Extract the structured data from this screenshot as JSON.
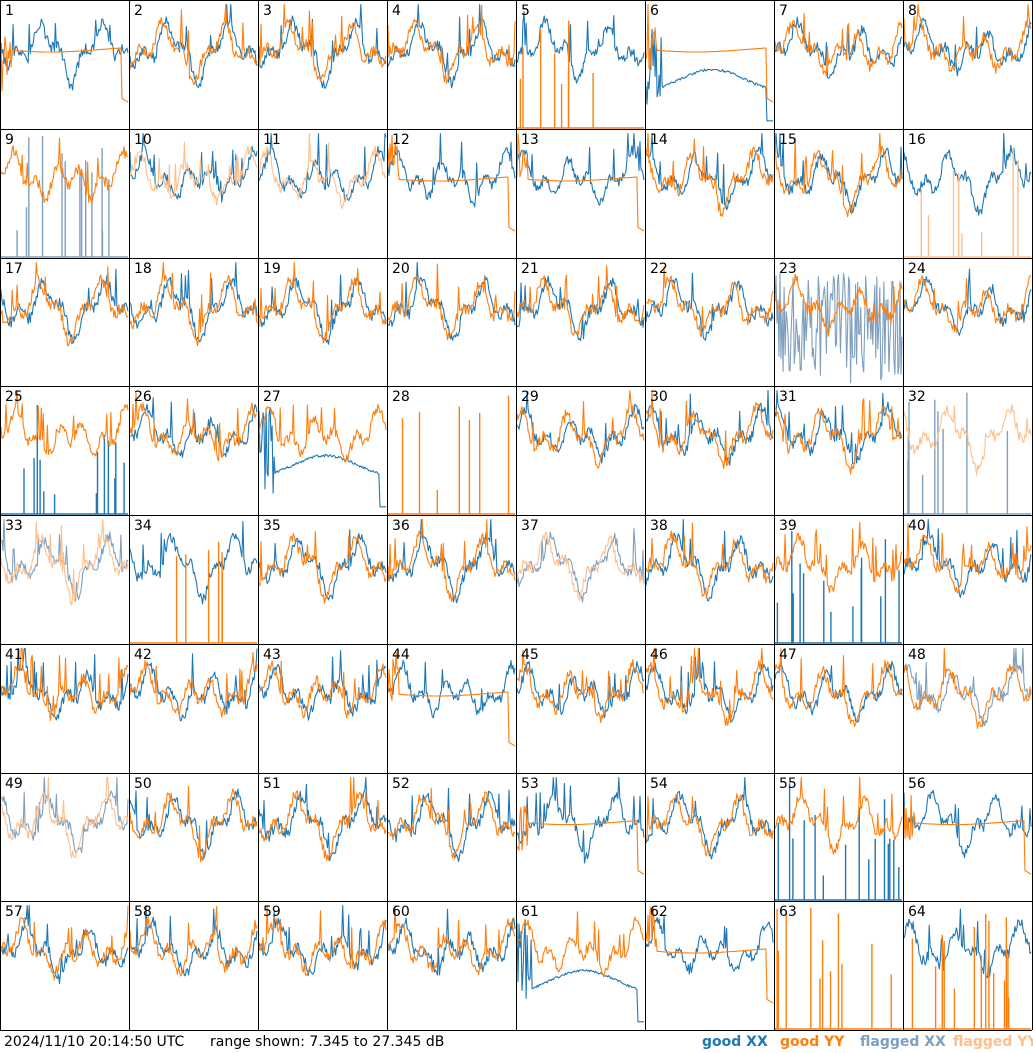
{
  "footer": {
    "timestamp": "2024/11/10 20:14:50 UTC",
    "range": "range shown: 7.345 to 27.345 dB"
  },
  "legend": {
    "good_xx": "good XX",
    "good_yy": "good YY",
    "flagged_xx": "flagged XX",
    "flagged_yy": "flagged YY"
  },
  "colors": {
    "good_xx": "#1f77b4",
    "good_yy": "#ff7f0e",
    "flagged_xx": "#7f9fbf",
    "flagged_yy": "#ffbf8a"
  },
  "chart_data": {
    "type": "line",
    "layout": "small-multiples 8x8",
    "ylim_db": [
      7.345,
      27.345
    ],
    "series_keys": [
      "XX",
      "YY"
    ],
    "tiles": [
      {
        "label": "1",
        "xx": "good",
        "yy": "good",
        "xx_shape": "normal",
        "yy_shape": "plateau"
      },
      {
        "label": "2",
        "xx": "good",
        "yy": "good",
        "xx_shape": "normal",
        "yy_shape": "normal"
      },
      {
        "label": "3",
        "xx": "good",
        "yy": "good",
        "xx_shape": "normal",
        "yy_shape": "normal"
      },
      {
        "label": "4",
        "xx": "good",
        "yy": "good",
        "xx_shape": "normal",
        "yy_shape": "normal"
      },
      {
        "label": "5",
        "xx": "good",
        "yy": "good",
        "xx_shape": "normal",
        "yy_shape": "spikes"
      },
      {
        "label": "6",
        "xx": "good",
        "yy": "good",
        "xx_shape": "dip",
        "yy_shape": "plateau"
      },
      {
        "label": "7",
        "xx": "good",
        "yy": "good",
        "xx_shape": "normal",
        "yy_shape": "normal"
      },
      {
        "label": "8",
        "xx": "good",
        "yy": "good",
        "xx_shape": "normal",
        "yy_shape": "normal"
      },
      {
        "label": "9",
        "xx": "flagged",
        "yy": "good",
        "xx_shape": "spikes",
        "yy_shape": "normal"
      },
      {
        "label": "10",
        "xx": "good",
        "yy": "flagged",
        "xx_shape": "normal",
        "yy_shape": "normal"
      },
      {
        "label": "11",
        "xx": "good",
        "yy": "flagged",
        "xx_shape": "normal",
        "yy_shape": "normal"
      },
      {
        "label": "12",
        "xx": "good",
        "yy": "good",
        "xx_shape": "normal",
        "yy_shape": "plateau"
      },
      {
        "label": "13",
        "xx": "good",
        "yy": "good",
        "xx_shape": "normal",
        "yy_shape": "plateau"
      },
      {
        "label": "14",
        "xx": "good",
        "yy": "good",
        "xx_shape": "normal",
        "yy_shape": "normal"
      },
      {
        "label": "15",
        "xx": "good",
        "yy": "good",
        "xx_shape": "normal",
        "yy_shape": "normal"
      },
      {
        "label": "16",
        "xx": "good",
        "yy": "flagged",
        "xx_shape": "normal",
        "yy_shape": "spikes"
      },
      {
        "label": "17",
        "xx": "good",
        "yy": "good",
        "xx_shape": "normal",
        "yy_shape": "normal"
      },
      {
        "label": "18",
        "xx": "good",
        "yy": "good",
        "xx_shape": "normal",
        "yy_shape": "normal"
      },
      {
        "label": "19",
        "xx": "good",
        "yy": "good",
        "xx_shape": "normal",
        "yy_shape": "normal"
      },
      {
        "label": "20",
        "xx": "good",
        "yy": "good",
        "xx_shape": "normal",
        "yy_shape": "normal"
      },
      {
        "label": "21",
        "xx": "good",
        "yy": "good",
        "xx_shape": "normal",
        "yy_shape": "normal"
      },
      {
        "label": "22",
        "xx": "good",
        "yy": "good",
        "xx_shape": "normal",
        "yy_shape": "normal"
      },
      {
        "label": "23",
        "xx": "flagged",
        "yy": "good",
        "xx_shape": "noisy",
        "yy_shape": "normal"
      },
      {
        "label": "24",
        "xx": "good",
        "yy": "good",
        "xx_shape": "normal",
        "yy_shape": "normal"
      },
      {
        "label": "25",
        "xx": "good",
        "yy": "good",
        "xx_shape": "spikes",
        "yy_shape": "normal"
      },
      {
        "label": "26",
        "xx": "good",
        "yy": "good",
        "xx_shape": "normal",
        "yy_shape": "normal"
      },
      {
        "label": "27",
        "xx": "good",
        "yy": "good",
        "xx_shape": "dip",
        "yy_shape": "normal"
      },
      {
        "label": "28",
        "xx": "good",
        "yy": "good",
        "xx_shape": "none",
        "yy_shape": "spikes"
      },
      {
        "label": "29",
        "xx": "good",
        "yy": "good",
        "xx_shape": "normal",
        "yy_shape": "normal"
      },
      {
        "label": "30",
        "xx": "good",
        "yy": "good",
        "xx_shape": "normal",
        "yy_shape": "normal"
      },
      {
        "label": "31",
        "xx": "good",
        "yy": "good",
        "xx_shape": "normal",
        "yy_shape": "normal"
      },
      {
        "label": "32",
        "xx": "flagged",
        "yy": "flagged",
        "xx_shape": "spikes",
        "yy_shape": "normal"
      },
      {
        "label": "33",
        "xx": "flagged",
        "yy": "flagged",
        "xx_shape": "normal",
        "yy_shape": "normal"
      },
      {
        "label": "34",
        "xx": "good",
        "yy": "good",
        "xx_shape": "normal",
        "yy_shape": "spikes"
      },
      {
        "label": "35",
        "xx": "good",
        "yy": "good",
        "xx_shape": "normal",
        "yy_shape": "normal"
      },
      {
        "label": "36",
        "xx": "good",
        "yy": "good",
        "xx_shape": "normal",
        "yy_shape": "normal"
      },
      {
        "label": "37",
        "xx": "flagged",
        "yy": "flagged",
        "xx_shape": "normal",
        "yy_shape": "normal"
      },
      {
        "label": "38",
        "xx": "good",
        "yy": "good",
        "xx_shape": "normal",
        "yy_shape": "normal"
      },
      {
        "label": "39",
        "xx": "good",
        "yy": "good",
        "xx_shape": "spikes",
        "yy_shape": "normal"
      },
      {
        "label": "40",
        "xx": "good",
        "yy": "good",
        "xx_shape": "normal",
        "yy_shape": "normal"
      },
      {
        "label": "41",
        "xx": "good",
        "yy": "good",
        "xx_shape": "normal",
        "yy_shape": "normal"
      },
      {
        "label": "42",
        "xx": "good",
        "yy": "good",
        "xx_shape": "normal",
        "yy_shape": "normal"
      },
      {
        "label": "43",
        "xx": "good",
        "yy": "good",
        "xx_shape": "normal",
        "yy_shape": "normal"
      },
      {
        "label": "44",
        "xx": "good",
        "yy": "good",
        "xx_shape": "normal",
        "yy_shape": "plateau"
      },
      {
        "label": "45",
        "xx": "good",
        "yy": "good",
        "xx_shape": "normal",
        "yy_shape": "normal"
      },
      {
        "label": "46",
        "xx": "good",
        "yy": "good",
        "xx_shape": "normal",
        "yy_shape": "normal"
      },
      {
        "label": "47",
        "xx": "good",
        "yy": "good",
        "xx_shape": "normal",
        "yy_shape": "normal"
      },
      {
        "label": "48",
        "xx": "flagged",
        "yy": "good",
        "xx_shape": "normal",
        "yy_shape": "normal"
      },
      {
        "label": "49",
        "xx": "flagged",
        "yy": "flagged",
        "xx_shape": "normal",
        "yy_shape": "normal"
      },
      {
        "label": "50",
        "xx": "good",
        "yy": "good",
        "xx_shape": "normal",
        "yy_shape": "normal"
      },
      {
        "label": "51",
        "xx": "good",
        "yy": "good",
        "xx_shape": "normal",
        "yy_shape": "normal"
      },
      {
        "label": "52",
        "xx": "good",
        "yy": "good",
        "xx_shape": "normal",
        "yy_shape": "normal"
      },
      {
        "label": "53",
        "xx": "good",
        "yy": "good",
        "xx_shape": "normal",
        "yy_shape": "plateau"
      },
      {
        "label": "54",
        "xx": "good",
        "yy": "good",
        "xx_shape": "normal",
        "yy_shape": "normal"
      },
      {
        "label": "55",
        "xx": "good",
        "yy": "good",
        "xx_shape": "spikes",
        "yy_shape": "normal"
      },
      {
        "label": "56",
        "xx": "good",
        "yy": "good",
        "xx_shape": "normal",
        "yy_shape": "plateau"
      },
      {
        "label": "57",
        "xx": "good",
        "yy": "good",
        "xx_shape": "normal",
        "yy_shape": "normal"
      },
      {
        "label": "58",
        "xx": "good",
        "yy": "good",
        "xx_shape": "normal",
        "yy_shape": "normal"
      },
      {
        "label": "59",
        "xx": "good",
        "yy": "good",
        "xx_shape": "normal",
        "yy_shape": "normal"
      },
      {
        "label": "60",
        "xx": "good",
        "yy": "good",
        "xx_shape": "normal",
        "yy_shape": "normal"
      },
      {
        "label": "61",
        "xx": "good",
        "yy": "good",
        "xx_shape": "dip",
        "yy_shape": "normal"
      },
      {
        "label": "62",
        "xx": "good",
        "yy": "good",
        "xx_shape": "normal",
        "yy_shape": "plateau"
      },
      {
        "label": "63",
        "xx": "good",
        "yy": "good",
        "xx_shape": "none",
        "yy_shape": "spikes"
      },
      {
        "label": "64",
        "xx": "good",
        "yy": "good",
        "xx_shape": "normal",
        "yy_shape": "spikes"
      }
    ]
  }
}
